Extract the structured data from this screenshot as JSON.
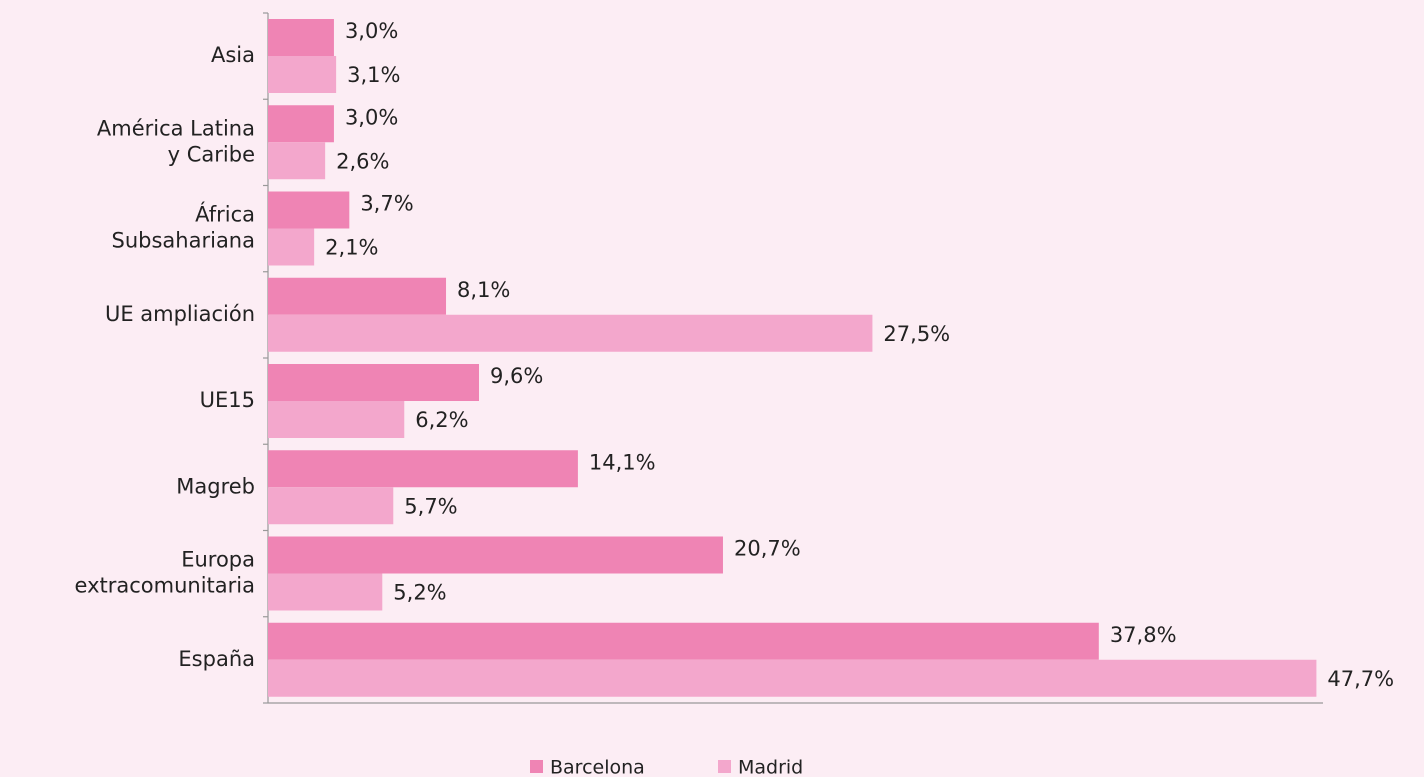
{
  "chart_data": {
    "type": "hbar",
    "categories": [
      "Asia",
      "América Latina\ny Caribe",
      "África\nSubsahariana",
      "UE ampliación",
      "UE15",
      "Magreb",
      "Europa\nextracomunitaria",
      "España"
    ],
    "series": [
      {
        "name": "Barcelona",
        "color": "#ef84b4",
        "values": [
          3.0,
          3.0,
          3.7,
          8.1,
          9.6,
          14.1,
          20.7,
          37.8
        ],
        "value_labels": [
          "3,0%",
          "3,0%",
          "3,7%",
          "8,1%",
          "9,6%",
          "14,1%",
          "20,7%",
          "37,8%"
        ]
      },
      {
        "name": "Madrid",
        "color": "#f3a7cc",
        "values": [
          3.1,
          2.6,
          2.1,
          27.5,
          6.2,
          5.7,
          5.2,
          47.7
        ],
        "value_labels": [
          "3,1%",
          "2,6%",
          "2,1%",
          "27,5%",
          "6,2%",
          "5,7%",
          "5,2%",
          "47,7%"
        ]
      }
    ],
    "xlim": [
      0,
      48
    ]
  }
}
